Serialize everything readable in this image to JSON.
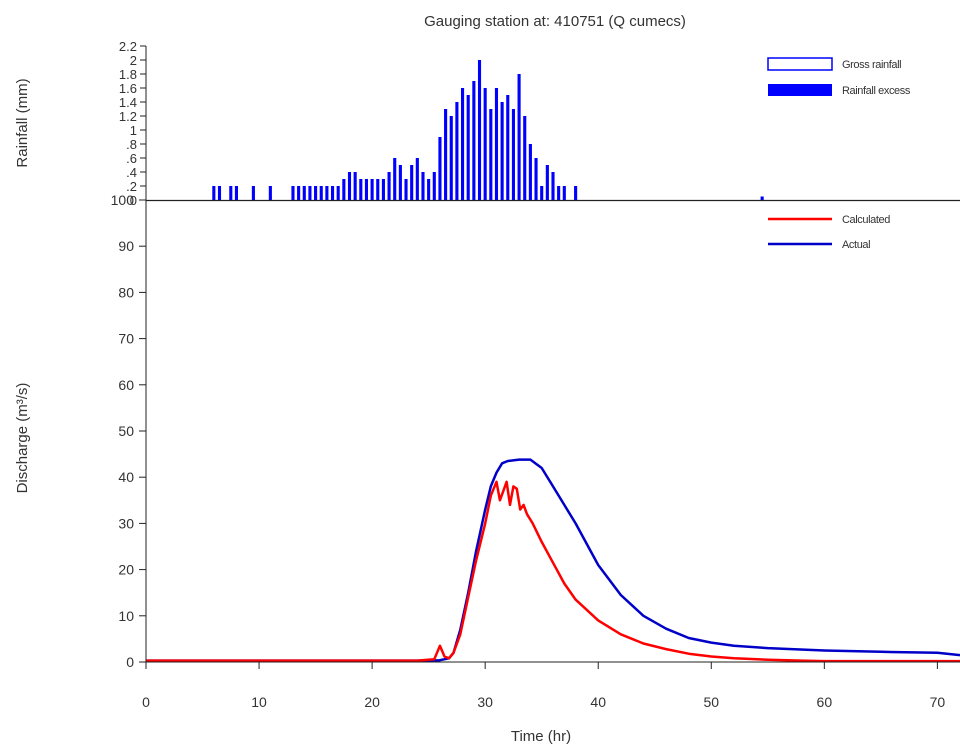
{
  "title": "Gauging station at: 410751 (Q cumecs)",
  "chart_data": [
    {
      "type": "bar",
      "ylabel": "Rainfall (mm)",
      "xlim": [
        0,
        72
      ],
      "ylim": [
        0,
        2.2
      ],
      "yticks": [
        "0",
        ".2",
        ".4",
        ".6",
        ".8",
        "1",
        "1.2",
        "1.4",
        "1.6",
        "1.8",
        "2",
        "2.2"
      ],
      "series": [
        {
          "name": "Gross rainfall",
          "color": "#0000ff",
          "fill": false
        },
        {
          "name": "Rainfall excess",
          "color": "#0000ff",
          "fill": true
        }
      ],
      "x": [
        6.0,
        6.5,
        7.0,
        7.5,
        8.0,
        8.5,
        9.0,
        9.5,
        10.0,
        10.5,
        11.0,
        11.5,
        12.0,
        12.5,
        13.0,
        13.5,
        14.0,
        14.5,
        15.0,
        15.5,
        16.0,
        16.5,
        17.0,
        17.5,
        18.0,
        18.5,
        19.0,
        19.5,
        20.0,
        20.5,
        21.0,
        21.5,
        22.0,
        22.5,
        23.0,
        23.5,
        24.0,
        24.5,
        25.0,
        25.5,
        26.0,
        26.5,
        27.0,
        27.5,
        28.0,
        28.5,
        29.0,
        29.5,
        30.0,
        30.5,
        31.0,
        31.5,
        32.0,
        32.5,
        33.0,
        33.5,
        34.0,
        34.5,
        35.0,
        35.5,
        36.0,
        36.5,
        37.0,
        37.5,
        38.0,
        54.5
      ],
      "values": [
        0.2,
        0.2,
        0,
        0.2,
        0.2,
        0,
        0,
        0.2,
        0,
        0,
        0.2,
        0,
        0,
        0,
        0.2,
        0.2,
        0.2,
        0.2,
        0.2,
        0.2,
        0.2,
        0.2,
        0.2,
        0.3,
        0.4,
        0.4,
        0.3,
        0.3,
        0.3,
        0.3,
        0.3,
        0.4,
        0.6,
        0.5,
        0.3,
        0.5,
        0.6,
        0.4,
        0.3,
        0.4,
        0.9,
        1.3,
        1.2,
        1.4,
        1.6,
        1.5,
        1.7,
        2.0,
        1.6,
        1.3,
        1.6,
        1.4,
        1.5,
        1.3,
        1.8,
        1.2,
        0.8,
        0.6,
        0.2,
        0.5,
        0.4,
        0.2,
        0.2,
        0,
        0.2,
        0.05
      ]
    },
    {
      "type": "line",
      "xlabel": "Time (hr)",
      "ylabel": "Discharge (m³/s)",
      "xlim": [
        0,
        72
      ],
      "ylim": [
        0,
        100
      ],
      "xticks": [
        0,
        10,
        20,
        30,
        40,
        50,
        60,
        70
      ],
      "yticks": [
        0,
        10,
        20,
        30,
        40,
        50,
        60,
        70,
        80,
        90,
        100
      ],
      "series": [
        {
          "name": "Calculated",
          "color": "#ff0000",
          "x": [
            0,
            24,
            25.5,
            26,
            26.4,
            26.8,
            27.2,
            27.8,
            28.5,
            29.2,
            30,
            30.5,
            31,
            31.3,
            31.6,
            31.9,
            32.2,
            32.5,
            32.8,
            33.1,
            33.4,
            33.7,
            34.2,
            35,
            36,
            37,
            38,
            40,
            42,
            44,
            46,
            48,
            50,
            52,
            55,
            58,
            60,
            65,
            72
          ],
          "values": [
            0.3,
            0.3,
            0.6,
            3.5,
            1.2,
            0.8,
            2,
            6,
            14,
            22,
            30,
            36,
            39,
            35,
            37,
            39,
            34,
            38,
            37.5,
            33,
            34,
            32,
            30,
            26,
            21.5,
            17,
            13.5,
            9,
            6,
            4,
            2.8,
            1.8,
            1.2,
            0.8,
            0.5,
            0.3,
            0.2,
            0.2,
            0.2
          ]
        },
        {
          "name": "Actual",
          "color": "#0000c8",
          "x": [
            0,
            24,
            26,
            26.8,
            27.2,
            27.8,
            28.5,
            29.2,
            30,
            30.5,
            31,
            31.5,
            32,
            33,
            34,
            35,
            36,
            37,
            38,
            40,
            42,
            44,
            46,
            48,
            50,
            52,
            55,
            60,
            65,
            70,
            72
          ],
          "values": [
            0.3,
            0.3,
            0.4,
            0.8,
            2,
            7,
            15,
            24,
            33,
            38,
            41,
            43,
            43.5,
            43.8,
            43.8,
            42,
            38,
            34,
            30,
            21,
            14.5,
            10,
            7.2,
            5.2,
            4.2,
            3.5,
            3.0,
            2.5,
            2.2,
            2.0,
            1.5
          ]
        }
      ]
    }
  ]
}
